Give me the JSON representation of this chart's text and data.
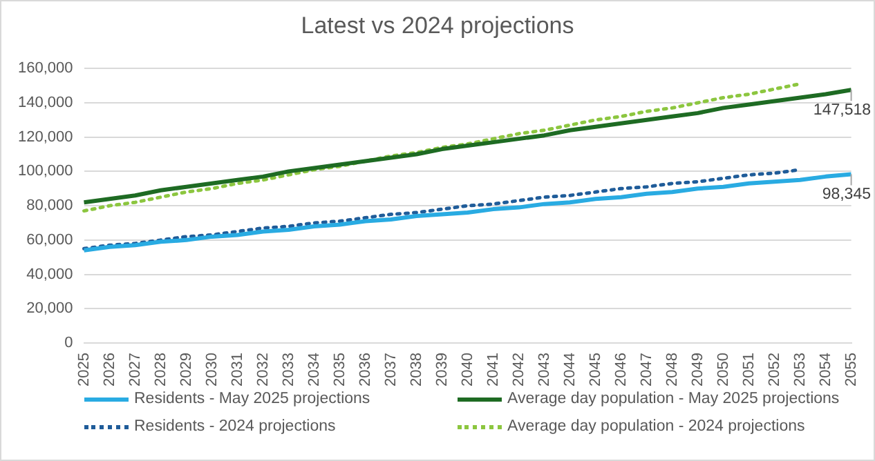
{
  "chart_data": {
    "type": "line",
    "title": "Latest vs 2024 projections",
    "categories": [
      "2025",
      "2026",
      "2027",
      "2028",
      "2029",
      "2030",
      "2031",
      "2032",
      "2033",
      "2034",
      "2035",
      "2036",
      "2037",
      "2038",
      "2039",
      "2040",
      "2041",
      "2042",
      "2043",
      "2044",
      "2045",
      "2046",
      "2047",
      "2048",
      "2049",
      "2050",
      "2051",
      "2052",
      "2053",
      "2054",
      "2055"
    ],
    "series": [
      {
        "name": "Residents - May 2025 projections",
        "color": "#29abe2",
        "line_style": "solid",
        "values": [
          54000,
          56000,
          57000,
          59000,
          60000,
          62000,
          63000,
          65000,
          66000,
          68000,
          69000,
          71000,
          72000,
          74000,
          75000,
          76000,
          78000,
          79000,
          81000,
          82000,
          84000,
          85000,
          87000,
          88000,
          90000,
          91000,
          93000,
          94000,
          95000,
          97000,
          98345
        ],
        "value_labels": [
          null,
          null,
          null,
          null,
          null,
          null,
          null,
          null,
          null,
          null,
          null,
          null,
          null,
          null,
          null,
          null,
          null,
          null,
          null,
          null,
          null,
          null,
          null,
          null,
          null,
          null,
          null,
          null,
          null,
          null,
          "98,345"
        ]
      },
      {
        "name": "Average day population - May 2025 projections",
        "color": "#1e6b23",
        "line_style": "solid",
        "values": [
          82000,
          84000,
          86000,
          89000,
          91000,
          93000,
          95000,
          97000,
          100000,
          102000,
          104000,
          106000,
          108000,
          110000,
          113000,
          115000,
          117000,
          119000,
          121000,
          124000,
          126000,
          128000,
          130000,
          132000,
          134000,
          137000,
          139000,
          141000,
          143000,
          145000,
          147518
        ],
        "value_labels": [
          null,
          null,
          null,
          null,
          null,
          null,
          null,
          null,
          null,
          null,
          null,
          null,
          null,
          null,
          null,
          null,
          null,
          null,
          null,
          null,
          null,
          null,
          null,
          null,
          null,
          null,
          null,
          null,
          null,
          null,
          "147,518"
        ]
      },
      {
        "name": "Residents - 2024 projections",
        "color": "#1f5c99",
        "line_style": "dotted",
        "values": [
          55000,
          57000,
          58000,
          60000,
          62000,
          63000,
          65000,
          67000,
          68000,
          70000,
          71000,
          73000,
          75000,
          76000,
          78000,
          80000,
          81000,
          83000,
          85000,
          86000,
          88000,
          90000,
          91000,
          93000,
          94000,
          96000,
          98000,
          99000,
          101000,
          null,
          null
        ]
      },
      {
        "name": "Average day population - 2024 projections",
        "color": "#8cc63f",
        "line_style": "dotted",
        "values": [
          77000,
          80000,
          82000,
          85000,
          88000,
          90000,
          93000,
          95000,
          98000,
          101000,
          103000,
          106000,
          109000,
          111000,
          114000,
          116000,
          119000,
          122000,
          124000,
          127000,
          130000,
          132000,
          135000,
          137000,
          140000,
          143000,
          145000,
          148000,
          151000,
          null,
          null
        ]
      }
    ],
    "ylim": [
      0,
      160000
    ],
    "yticks": [
      0,
      {
        "value": 20000,
        "label": "20,000"
      },
      {
        "value": 40000,
        "label": "40,000"
      },
      {
        "value": 60000,
        "label": "60,000"
      },
      {
        "value": 80000,
        "label": "80,000"
      },
      {
        "value": 100000,
        "label": "100,000"
      },
      {
        "value": 120000,
        "label": "120,000"
      },
      {
        "value": 140000,
        "label": "140,000"
      },
      {
        "value": 160000,
        "label": "160,000"
      }
    ],
    "grid": "y",
    "legend": "bottom",
    "marker": "none"
  }
}
